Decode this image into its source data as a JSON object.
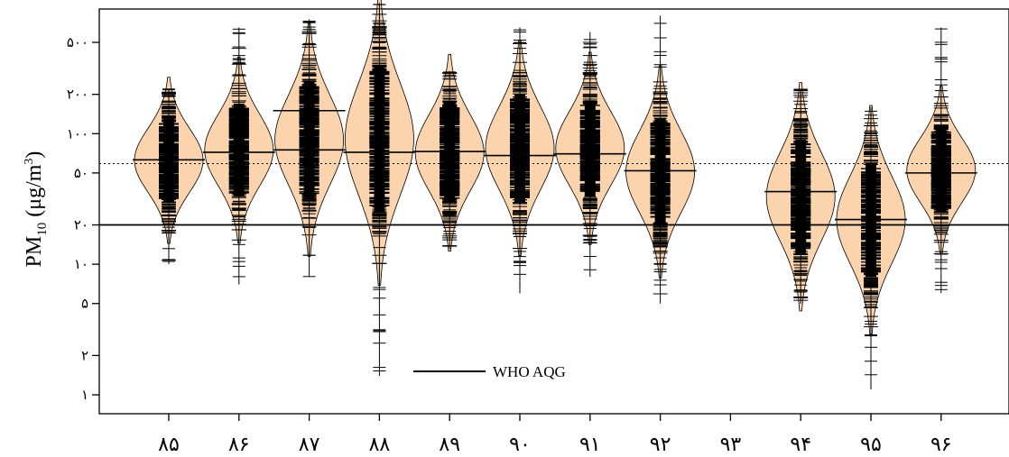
{
  "chart_data": {
    "type": "beanplot",
    "categories": [
      "۸۵",
      "۸۶",
      "۸۷",
      "۸۸",
      "۸۹",
      "۹۰",
      "۹۱",
      "۹۲",
      "۹۳",
      "۹۴",
      "۹۵",
      "۹۶"
    ],
    "ylabel": {
      "main": "PM",
      "sub": "10",
      "unit_open": " (μg/m",
      "sup": "3",
      "unit_close": ")"
    },
    "y_scale": "log",
    "ylim": [
      0.85,
      1100
    ],
    "y_ticks": [
      {
        "value": 1,
        "label": "۱"
      },
      {
        "value": 2,
        "label": "۲"
      },
      {
        "value": 5,
        "label": "۵"
      },
      {
        "value": 10,
        "label": "۱۰"
      },
      {
        "value": 20,
        "label": "۲۰"
      },
      {
        "value": 50,
        "label": "۵۰"
      },
      {
        "value": 100,
        "label": "۱۰۰"
      },
      {
        "value": 200,
        "label": "۲۰۰"
      },
      {
        "value": 500,
        "label": "۵۰۰"
      }
    ],
    "reference_lines": {
      "who_aqg": 20,
      "overall_mean_dotted": 59
    },
    "legend": {
      "label": "WHO AQG",
      "placement": "bottom-center"
    },
    "beans": [
      {
        "category": "۸۵",
        "mean": 63,
        "min": 10,
        "max": 220,
        "q_low": 30,
        "q_high": 130
      },
      {
        "category": "۸۶",
        "mean": 72,
        "min": 7,
        "max": 650,
        "q_low": 33,
        "q_high": 170
      },
      {
        "category": "۸۷",
        "mean": 150,
        "median": 75,
        "min": 8,
        "max": 750,
        "q_low": 32,
        "q_high": 250
      },
      {
        "category": "۸۸",
        "mean": 72,
        "min": 1.4,
        "max": 1000,
        "q_low": 25,
        "q_high": 330
      },
      {
        "category": "۸۹",
        "mean": 73,
        "min": 13,
        "max": 300,
        "q_low": 30,
        "q_high": 170
      },
      {
        "category": "۹۰",
        "mean": 68,
        "min": 6,
        "max": 650,
        "q_low": 30,
        "q_high": 200
      },
      {
        "category": "۹۱",
        "mean": 70,
        "min": 8,
        "max": 600,
        "q_low": 33,
        "q_high": 180
      },
      {
        "category": "۹۲",
        "mean": 52,
        "min": 5,
        "max": 800,
        "q_low": 20,
        "q_high": 130
      },
      {
        "category": "۹۳",
        "empty": true
      },
      {
        "category": "۹۴",
        "mean": 36,
        "min": 5,
        "max": 220,
        "q_low": 12,
        "q_high": 90
      },
      {
        "category": "۹۵",
        "mean": 22,
        "min": 1.1,
        "max": 160,
        "q_low": 8,
        "q_high": 60
      },
      {
        "category": "۹۶",
        "mean": 50,
        "min": 6,
        "max": 650,
        "q_low": 25,
        "q_high": 110
      }
    ],
    "bean_fill": "#fbd4ae",
    "grid": false
  }
}
